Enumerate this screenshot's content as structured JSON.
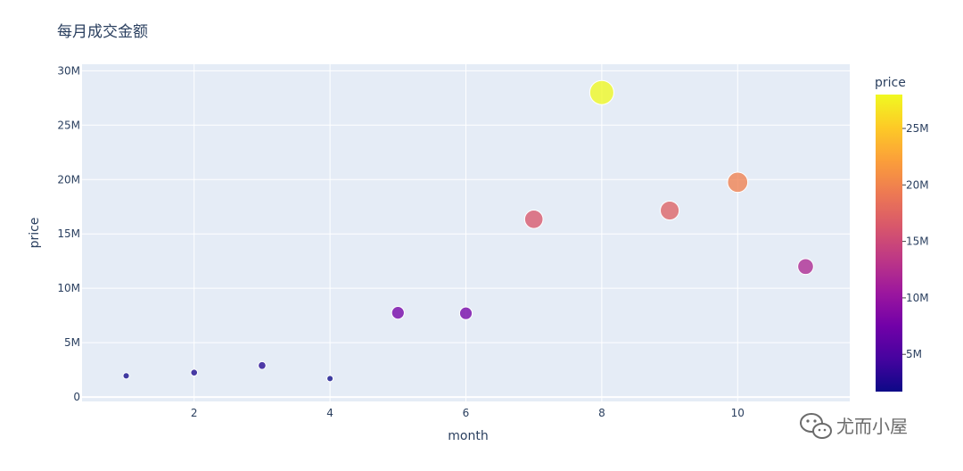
{
  "chart_data": {
    "type": "scatter",
    "title": "每月成交金额",
    "xlabel": "month",
    "ylabel": "price",
    "xlim": [
      0.35,
      11.65
    ],
    "ylim": [
      -400000,
      30600000
    ],
    "x_ticks": [
      2,
      4,
      6,
      8,
      10
    ],
    "y_ticks": [
      0,
      5000000,
      10000000,
      15000000,
      20000000,
      25000000,
      30000000
    ],
    "y_tick_labels": [
      "0",
      "5M",
      "10M",
      "15M",
      "20M",
      "25M",
      "30M"
    ],
    "grid": true,
    "series": [
      {
        "x": [
          1,
          2,
          3,
          4,
          5,
          6,
          7,
          8,
          9,
          10,
          11
        ],
        "y": [
          1950000,
          2250000,
          2900000,
          1700000,
          7750000,
          7700000,
          16350000,
          28000000,
          17150000,
          19750000,
          12000000
        ],
        "size_by": "price",
        "color_by": "price"
      }
    ],
    "colorbar": {
      "title": "price",
      "range": [
        1700000,
        28000000
      ],
      "ticks": [
        5000000,
        10000000,
        15000000,
        20000000,
        25000000
      ],
      "tick_labels": [
        "5M",
        "10M",
        "15M",
        "20M",
        "25M"
      ],
      "colors": [
        "#0d0887",
        "#46039f",
        "#7201a8",
        "#9c179e",
        "#bd3786",
        "#d8576b",
        "#ed7953",
        "#fb9f3a",
        "#fdca26",
        "#f0f921"
      ]
    }
  },
  "watermark": {
    "text": "尤而小屋",
    "icon": "wechat-icon"
  },
  "colors": {
    "plot_bg": "#e5ecf6",
    "grid": "#ffffff",
    "text": "#2a3f5f",
    "marker_outline": "#ffffff"
  }
}
